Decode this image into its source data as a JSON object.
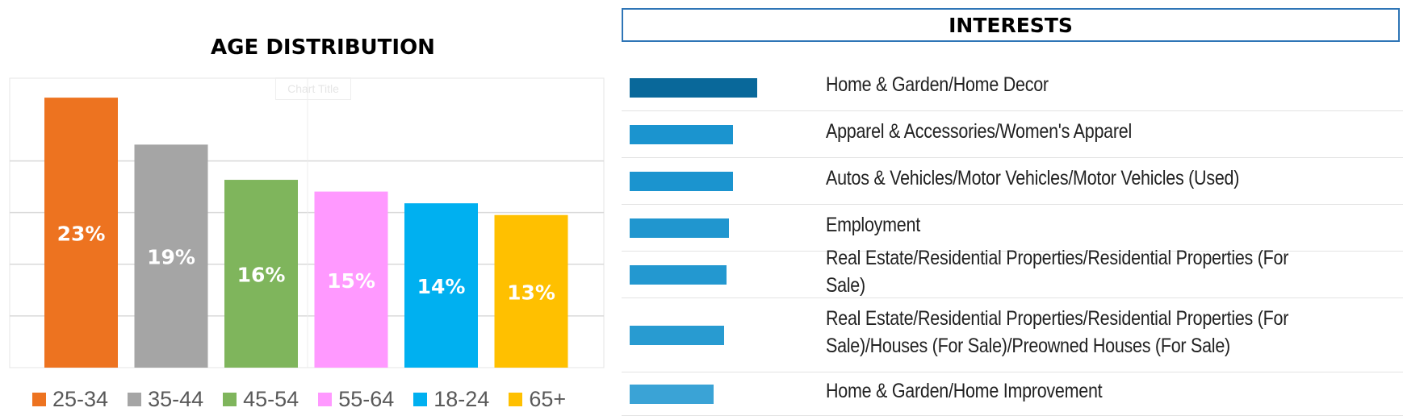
{
  "age_distribution": {
    "title": "AGE DISTRIBUTION",
    "watermark": "Chart Title"
  },
  "interests": {
    "title": "INTERESTS"
  },
  "chart_data": [
    {
      "type": "bar",
      "title": "AGE DISTRIBUTION",
      "categories": [
        "25-34",
        "35-44",
        "45-54",
        "55-64",
        "18-24",
        "65+"
      ],
      "values": [
        23,
        19,
        16,
        15,
        14,
        13
      ],
      "data_labels": [
        "23%",
        "19%",
        "16%",
        "15%",
        "14%",
        "13%"
      ],
      "colors": [
        "#ed7320",
        "#a5a5a5",
        "#7fb55c",
        "#ff99ff",
        "#00b0f0",
        "#ffc000"
      ],
      "legend": "bottom",
      "grid": true,
      "ylim": [
        0,
        25
      ]
    },
    {
      "type": "bar",
      "orientation": "horizontal",
      "title": "INTERESTS",
      "categories": [
        "Home & Garden/Home Decor",
        "Apparel & Accessories/Women's Apparel",
        "Autos & Vehicles/Motor Vehicles/Motor Vehicles (Used)",
        "Employment",
        "Real Estate/Residential Properties/Residential Properties (For Sale)",
        "Real Estate/Residential Properties/Residential Properties (For Sale)/Houses (For Sale)/Preowned Houses (For Sale)",
        "Home & Garden/Home Improvement"
      ],
      "values": [
        1.0,
        0.81,
        0.81,
        0.78,
        0.76,
        0.74,
        0.66
      ],
      "colors": [
        "#09689a",
        "#1b94cf",
        "#1b94cf",
        "#2096cf",
        "#2398d0",
        "#289bd1",
        "#3aa3d6"
      ]
    }
  ]
}
